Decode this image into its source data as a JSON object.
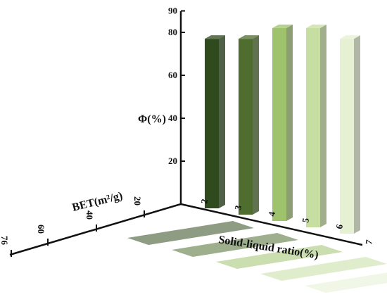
{
  "chart_data": {
    "type": "bar",
    "title": "",
    "categories": [
      "2",
      "3",
      "4",
      "5",
      "6"
    ],
    "values": [
      77,
      77,
      82,
      82,
      77
    ],
    "ylabel": "Φ(%)",
    "ylim": [
      0,
      90
    ],
    "yticks": [
      "20",
      "40",
      "60",
      "80",
      "90"
    ],
    "xlabel": "Solid-liquid ratio(%)",
    "xticks": [
      "2",
      "3",
      "4",
      "5",
      "6",
      "7"
    ],
    "zlabel": "BET(m²/g)",
    "zticks": [
      "20",
      "40",
      "60",
      "76"
    ],
    "colors": [
      "#2f4a1c",
      "#4e6d2f",
      "#9fc26d",
      "#c7dea2",
      "#e6f0d2"
    ],
    "grid": false,
    "legend": "none"
  }
}
